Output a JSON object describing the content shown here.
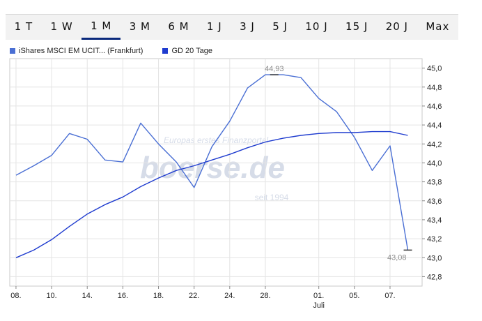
{
  "tabs": [
    {
      "label": "1 T",
      "active": false
    },
    {
      "label": "1 W",
      "active": false
    },
    {
      "label": "1 M",
      "active": true
    },
    {
      "label": "3 M",
      "active": false
    },
    {
      "label": "6 M",
      "active": false
    },
    {
      "label": "1 J",
      "active": false
    },
    {
      "label": "3 J",
      "active": false
    },
    {
      "label": "5 J",
      "active": false
    },
    {
      "label": "10 J",
      "active": false
    },
    {
      "label": "15 J",
      "active": false
    },
    {
      "label": "20 J",
      "active": false
    },
    {
      "label": "Max",
      "active": false
    }
  ],
  "watermark": {
    "tagline": "Europas erstes Finanzportal",
    "brand": "boerse.de",
    "since": "seit 1994"
  },
  "chart_data": {
    "type": "line",
    "title": "",
    "xlabel": "",
    "ylabel": "",
    "ylim": [
      42.7,
      45.1
    ],
    "grid": true,
    "legend_position": "top-left",
    "x": [
      1,
      2,
      3,
      4,
      5,
      6,
      7,
      8,
      9,
      10,
      11,
      12,
      13,
      14,
      15,
      16,
      17,
      18,
      19,
      20,
      21,
      22,
      23
    ],
    "x_tick_labels": [
      {
        "x": 1,
        "label": "08."
      },
      {
        "x": 3,
        "label": "10."
      },
      {
        "x": 5,
        "label": "14."
      },
      {
        "x": 7,
        "label": "16."
      },
      {
        "x": 9,
        "label": "18."
      },
      {
        "x": 11,
        "label": "22."
      },
      {
        "x": 13,
        "label": "24."
      },
      {
        "x": 15,
        "label": "28."
      },
      {
        "x": 18,
        "label": "01."
      },
      {
        "x": 20,
        "label": "05."
      },
      {
        "x": 22,
        "label": "07."
      }
    ],
    "x_sub_label": {
      "x": 18,
      "label": "Juli"
    },
    "y_ticks": [
      "42,8",
      "43,0",
      "43,2",
      "43,4",
      "43,6",
      "43,8",
      "44,0",
      "44,2",
      "44,4",
      "44,6",
      "44,8",
      "45,0"
    ],
    "series": [
      {
        "name": "iShares MSCI EM UCIT... (Frankfurt)",
        "color": "#4a6fd4",
        "values": [
          43.87,
          43.97,
          44.08,
          44.31,
          44.25,
          44.03,
          44.01,
          44.42,
          44.2,
          44.01,
          43.74,
          44.17,
          44.44,
          44.79,
          44.93,
          44.93,
          44.9,
          44.68,
          44.54,
          44.27,
          43.92,
          44.18,
          43.08
        ]
      },
      {
        "name": "GD 20 Tage",
        "color": "#1f3ccf",
        "values": [
          43.0,
          43.08,
          43.19,
          43.33,
          43.46,
          43.56,
          43.64,
          43.75,
          43.84,
          43.92,
          43.97,
          44.03,
          44.09,
          44.16,
          44.22,
          44.26,
          44.29,
          44.31,
          44.32,
          44.32,
          44.33,
          44.33,
          44.29
        ]
      }
    ],
    "annotations": [
      {
        "text": "44,93",
        "x": 15.5,
        "y": 44.93,
        "position": "above"
      },
      {
        "text": "43,08",
        "x": 23,
        "y": 43.08,
        "position": "below-left"
      }
    ]
  }
}
